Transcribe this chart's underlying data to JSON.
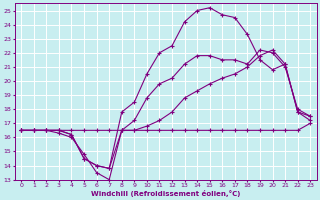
{
  "xlabel": "Windchill (Refroidissement éolien,°C)",
  "background_color": "#c8eef0",
  "grid_color": "#ffffff",
  "line_color": "#800080",
  "ylim": [
    13,
    25.5
  ],
  "xlim": [
    -0.5,
    23.5
  ],
  "yticks": [
    13,
    14,
    15,
    16,
    17,
    18,
    19,
    20,
    21,
    22,
    23,
    24,
    25
  ],
  "xticks": [
    0,
    1,
    2,
    3,
    4,
    5,
    6,
    7,
    8,
    9,
    10,
    11,
    12,
    13,
    14,
    15,
    16,
    17,
    18,
    19,
    20,
    21,
    22,
    23
  ],
  "line1_x": [
    0,
    1,
    2,
    3,
    4,
    5,
    6,
    7,
    8,
    9,
    10,
    11,
    12,
    13,
    14,
    15,
    16,
    17,
    18,
    19,
    20,
    21,
    22,
    23
  ],
  "line1_y": [
    16.5,
    16.5,
    16.5,
    16.3,
    16.0,
    14.8,
    13.5,
    13.0,
    16.5,
    16.5,
    16.5,
    16.5,
    16.5,
    16.5,
    16.5,
    16.5,
    16.5,
    16.5,
    16.5,
    16.5,
    16.5,
    16.5,
    16.5,
    17.0
  ],
  "line2_x": [
    0,
    1,
    2,
    3,
    4,
    5,
    6,
    7,
    8,
    9,
    10,
    11,
    12,
    13,
    14,
    15,
    16,
    17,
    18,
    19,
    20,
    21,
    22,
    23
  ],
  "line2_y": [
    16.5,
    16.5,
    16.5,
    16.5,
    16.2,
    14.5,
    14.0,
    13.8,
    17.8,
    18.5,
    20.5,
    22.0,
    22.5,
    24.2,
    25.0,
    25.2,
    24.7,
    24.5,
    23.3,
    21.5,
    20.8,
    21.2,
    17.8,
    17.5
  ],
  "line3_x": [
    0,
    1,
    2,
    3,
    4,
    5,
    6,
    7,
    8,
    9,
    10,
    11,
    12,
    13,
    14,
    15,
    16,
    17,
    18,
    19,
    20,
    21,
    22,
    23
  ],
  "line3_y": [
    16.5,
    16.5,
    16.5,
    16.5,
    16.2,
    14.5,
    14.0,
    13.8,
    16.5,
    17.2,
    18.8,
    19.8,
    20.2,
    21.2,
    21.8,
    21.8,
    21.5,
    21.5,
    21.2,
    22.2,
    22.0,
    21.0,
    18.0,
    17.5
  ],
  "line4_x": [
    0,
    1,
    2,
    3,
    4,
    5,
    6,
    7,
    8,
    9,
    10,
    11,
    12,
    13,
    14,
    15,
    16,
    17,
    18,
    19,
    20,
    21,
    22,
    23
  ],
  "line4_y": [
    16.5,
    16.5,
    16.5,
    16.5,
    16.5,
    16.5,
    16.5,
    16.5,
    16.5,
    16.5,
    16.8,
    17.2,
    17.8,
    18.8,
    19.3,
    19.8,
    20.2,
    20.5,
    21.0,
    21.8,
    22.2,
    21.2,
    17.8,
    17.2
  ]
}
